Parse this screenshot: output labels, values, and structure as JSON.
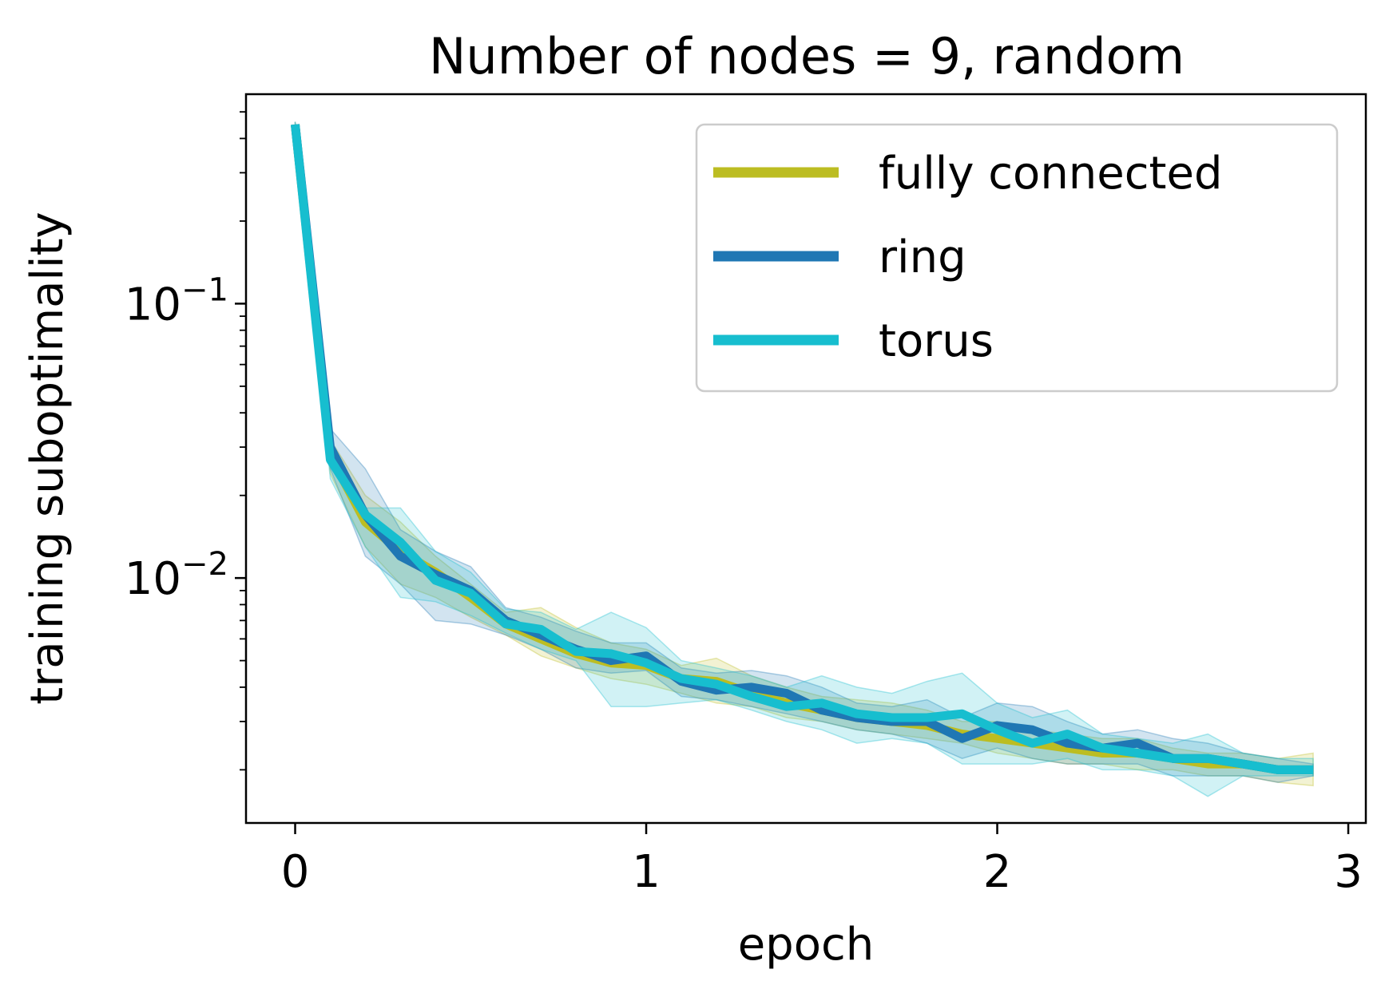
{
  "chart_data": {
    "type": "line",
    "title": "Number of nodes = 9, random",
    "xlabel": "epoch",
    "ylabel": "training suboptimality",
    "xlim": [
      -0.14,
      3.05
    ],
    "ylim": [
      0.00128,
      0.58
    ],
    "yscale": "log",
    "legend_position": "top-right",
    "grid": false,
    "x_ticks": [
      {
        "value": 0,
        "label": "0"
      },
      {
        "value": 1,
        "label": "1"
      },
      {
        "value": 2,
        "label": "2"
      },
      {
        "value": 3,
        "label": "3"
      }
    ],
    "y_ticks": [
      {
        "value": 0.1,
        "base": "10",
        "exp": "−1"
      },
      {
        "value": 0.01,
        "base": "10",
        "exp": "−2"
      }
    ],
    "x": [
      0,
      0.1,
      0.2,
      0.3,
      0.4,
      0.5,
      0.6,
      0.7,
      0.8,
      0.9,
      1.0,
      1.1,
      1.2,
      1.3,
      1.4,
      1.5,
      1.6,
      1.7,
      1.8,
      1.9,
      2.0,
      2.1,
      2.2,
      2.3,
      2.4,
      2.5,
      2.6,
      2.7,
      2.8,
      2.9
    ],
    "series": [
      {
        "name": "fully connected",
        "color": "#bcbd22",
        "values": [
          0.45,
          0.028,
          0.016,
          0.0125,
          0.0105,
          0.0085,
          0.0068,
          0.006,
          0.0053,
          0.0049,
          0.0048,
          0.0043,
          0.0042,
          0.0038,
          0.0035,
          0.0033,
          0.0031,
          0.003,
          0.0029,
          0.0027,
          0.0026,
          0.0025,
          0.0024,
          0.0023,
          0.0023,
          0.0022,
          0.0021,
          0.0021,
          0.002,
          0.002
        ],
        "lower": [
          0.44,
          0.024,
          0.013,
          0.0095,
          0.0085,
          0.0072,
          0.0062,
          0.0052,
          0.0047,
          0.0043,
          0.0041,
          0.0038,
          0.0035,
          0.0034,
          0.0031,
          0.003,
          0.0028,
          0.0027,
          0.0026,
          0.0025,
          0.0023,
          0.0022,
          0.0021,
          0.0021,
          0.002,
          0.002,
          0.0019,
          0.0019,
          0.0018,
          0.00175
        ],
        "upper": [
          0.46,
          0.032,
          0.02,
          0.016,
          0.012,
          0.0095,
          0.0075,
          0.0078,
          0.0066,
          0.0058,
          0.0055,
          0.0048,
          0.0051,
          0.0044,
          0.004,
          0.0037,
          0.0036,
          0.0035,
          0.0033,
          0.003,
          0.003,
          0.0028,
          0.0027,
          0.0026,
          0.0026,
          0.0024,
          0.0023,
          0.0023,
          0.0022,
          0.0023
        ]
      },
      {
        "name": "ring",
        "color": "#1f77b4",
        "values": [
          0.45,
          0.03,
          0.017,
          0.012,
          0.0103,
          0.009,
          0.007,
          0.0062,
          0.0055,
          0.005,
          0.0052,
          0.0042,
          0.0039,
          0.004,
          0.0038,
          0.0033,
          0.0031,
          0.003,
          0.003,
          0.0026,
          0.0029,
          0.0028,
          0.0025,
          0.0024,
          0.0025,
          0.0022,
          0.0022,
          0.0021,
          0.002,
          0.002
        ],
        "lower": [
          0.44,
          0.025,
          0.012,
          0.0095,
          0.007,
          0.0068,
          0.0062,
          0.0055,
          0.0047,
          0.0045,
          0.0046,
          0.0037,
          0.0036,
          0.0034,
          0.0032,
          0.003,
          0.0028,
          0.0027,
          0.0025,
          0.0022,
          0.0024,
          0.0022,
          0.0021,
          0.0021,
          0.0021,
          0.0019,
          0.0019,
          0.0019,
          0.0018,
          0.0019
        ],
        "upper": [
          0.46,
          0.035,
          0.025,
          0.015,
          0.0125,
          0.011,
          0.0078,
          0.0072,
          0.0064,
          0.0058,
          0.0058,
          0.0047,
          0.0045,
          0.0046,
          0.0044,
          0.004,
          0.0035,
          0.0034,
          0.0036,
          0.0031,
          0.0035,
          0.0034,
          0.003,
          0.0027,
          0.0028,
          0.0026,
          0.0025,
          0.0023,
          0.0022,
          0.0021
        ]
      },
      {
        "name": "torus",
        "color": "#17becf",
        "values": [
          0.45,
          0.027,
          0.017,
          0.0135,
          0.0098,
          0.0088,
          0.0068,
          0.0065,
          0.0054,
          0.0053,
          0.0049,
          0.0043,
          0.0041,
          0.0037,
          0.0034,
          0.0035,
          0.0032,
          0.0031,
          0.0031,
          0.0032,
          0.0028,
          0.0025,
          0.0027,
          0.0024,
          0.0023,
          0.0022,
          0.0022,
          0.0021,
          0.002,
          0.002
        ],
        "lower": [
          0.44,
          0.023,
          0.013,
          0.0085,
          0.0082,
          0.0073,
          0.0063,
          0.0055,
          0.005,
          0.0034,
          0.0034,
          0.0035,
          0.0036,
          0.0033,
          0.003,
          0.0028,
          0.0025,
          0.0026,
          0.0025,
          0.0021,
          0.0021,
          0.0021,
          0.0022,
          0.002,
          0.002,
          0.0019,
          0.0016,
          0.0019,
          0.0019,
          0.0019
        ],
        "upper": [
          0.46,
          0.031,
          0.018,
          0.018,
          0.0125,
          0.0105,
          0.0077,
          0.0075,
          0.0065,
          0.0075,
          0.0066,
          0.005,
          0.0047,
          0.0044,
          0.004,
          0.0044,
          0.004,
          0.0038,
          0.0042,
          0.0045,
          0.0035,
          0.0031,
          0.0033,
          0.0027,
          0.0026,
          0.0025,
          0.0027,
          0.0023,
          0.0022,
          0.0022
        ]
      }
    ]
  }
}
